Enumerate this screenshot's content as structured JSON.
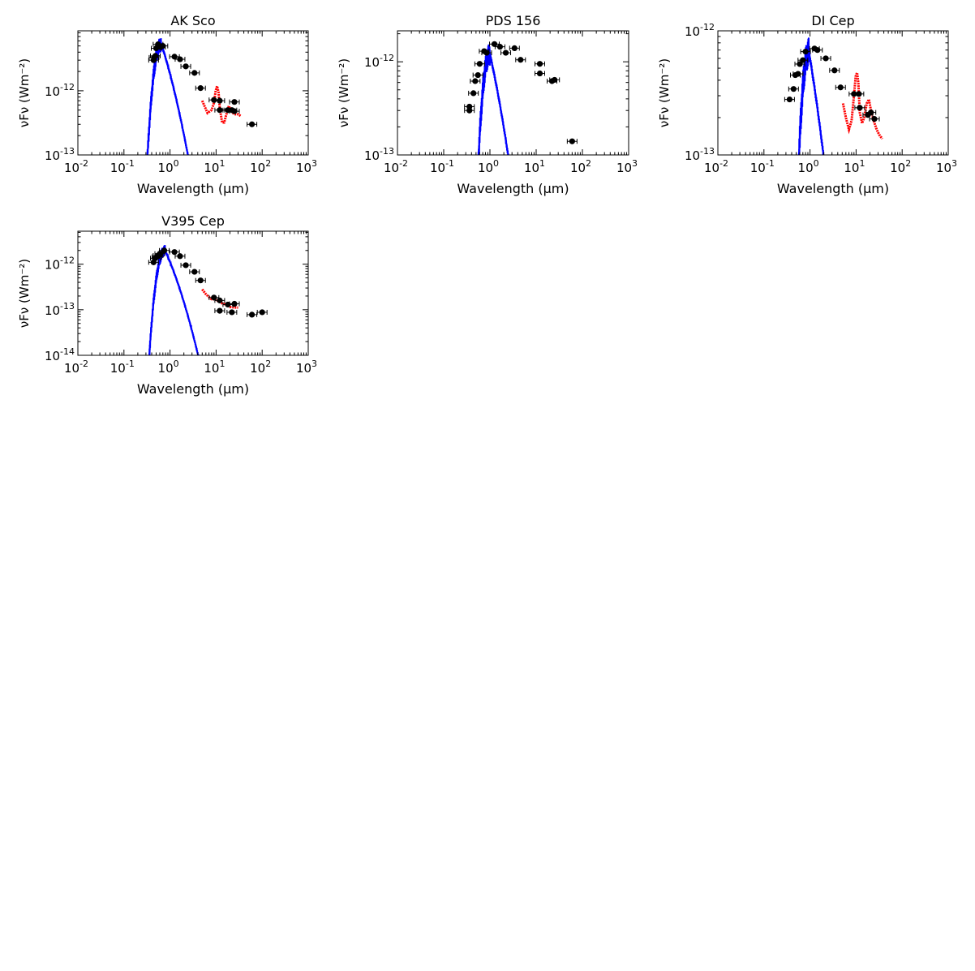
{
  "chart_data": [
    {
      "type": "scatter",
      "title": "AK Sco",
      "xlabel": "Wavelength (μm)",
      "ylabel": "νFν (Wm⁻²)",
      "xscale": "log",
      "yscale": "log",
      "xlim": [
        0.01,
        1000
      ],
      "ylim": [
        1e-13,
        8.6e-12
      ],
      "x_ticks": [
        "10^-2",
        "10^-1",
        "10^0",
        "10^1",
        "10^2",
        "10^3"
      ],
      "y_ticks": [
        "10^-13",
        "10^-12"
      ],
      "series": [
        {
          "kind": "photometry",
          "color": "#000000",
          "points": [
            [
              0.44,
              3e-12
            ],
            [
              0.45,
              3.3e-12
            ],
            [
              0.48,
              3.5e-12
            ],
            [
              0.5,
              4.6e-12
            ],
            [
              0.55,
              5.3e-12
            ],
            [
              0.62,
              4.8e-12
            ],
            [
              0.7,
              5e-12
            ],
            [
              1.25,
              3.4e-12
            ],
            [
              1.65,
              3.1e-12
            ],
            [
              2.2,
              2.4e-12
            ],
            [
              3.4,
              1.9e-12
            ],
            [
              4.6,
              1.1e-12
            ],
            [
              9.0,
              7.2e-13
            ],
            [
              12.0,
              7e-13
            ],
            [
              12.0,
              5e-13
            ],
            [
              18.0,
              5e-13
            ],
            [
              22.0,
              5e-13
            ],
            [
              25.0,
              6.7e-13
            ],
            [
              25.0,
              4.8e-13
            ],
            [
              60.0,
              3e-13
            ]
          ]
        },
        {
          "kind": "stellar_model",
          "color": "#0000ff",
          "peak_um": 0.65,
          "peak": 5.3e-12,
          "start_um": 0.25,
          "end_um": 5.0
        },
        {
          "kind": "ir_spectrum",
          "color": "#ff0000",
          "points": [
            [
              5.0,
              7e-13
            ],
            [
              6.5,
              4.5e-13
            ],
            [
              8.0,
              5e-13
            ],
            [
              9.0,
              6.5e-13
            ],
            [
              9.8,
              1e-12
            ],
            [
              10.5,
              1.18e-12
            ],
            [
              11.3,
              9.5e-13
            ],
            [
              12.0,
              5.5e-13
            ],
            [
              13.5,
              3.2e-13
            ],
            [
              15.0,
              3.2e-13
            ],
            [
              17.0,
              4.5e-13
            ],
            [
              19.0,
              5.8e-13
            ],
            [
              21.0,
              4.8e-13
            ],
            [
              25.0,
              4.3e-13
            ],
            [
              30.0,
              4.3e-13
            ],
            [
              35.0,
              4e-13
            ]
          ]
        }
      ]
    },
    {
      "type": "scatter",
      "title": "PDS 156",
      "xlabel": "Wavelength (μm)",
      "ylabel": "νFν (Wm⁻²)",
      "xscale": "log",
      "yscale": "log",
      "xlim": [
        0.01,
        1000
      ],
      "ylim": [
        1e-13,
        2.15e-12
      ],
      "x_ticks": [
        "10^-2",
        "10^-1",
        "10^0",
        "10^1",
        "10^2",
        "10^3"
      ],
      "y_ticks": [
        "10^-13",
        "10^-12"
      ],
      "series": [
        {
          "kind": "photometry",
          "color": "#000000",
          "points": [
            [
              0.36,
              3.3e-13
            ],
            [
              0.36,
              3e-13
            ],
            [
              0.44,
              4.6e-13
            ],
            [
              0.48,
              6.2e-13
            ],
            [
              0.55,
              7.2e-13
            ],
            [
              0.6,
              9.5e-13
            ],
            [
              0.75,
              1.3e-12
            ],
            [
              0.85,
              1.25e-12
            ],
            [
              1.25,
              1.55e-12
            ],
            [
              1.65,
              1.45e-12
            ],
            [
              2.2,
              1.25e-12
            ],
            [
              3.4,
              1.4e-12
            ],
            [
              4.6,
              1.05e-12
            ],
            [
              12.0,
              9.5e-13
            ],
            [
              12.0,
              7.5e-13
            ],
            [
              22.0,
              6.2e-13
            ],
            [
              25.0,
              6.4e-13
            ],
            [
              60.0,
              1.4e-13
            ]
          ]
        },
        {
          "kind": "stellar_model",
          "color": "#0000ff",
          "peak_um": 1.0,
          "peak": 1.2e-12,
          "start_um": 0.35,
          "end_um": 4.0
        }
      ]
    },
    {
      "type": "scatter",
      "title": "DI Cep",
      "xlabel": "Wavelength (μm)",
      "ylabel": "νFν (Wm⁻²)",
      "xscale": "log",
      "yscale": "log",
      "xlim": [
        0.01,
        1000
      ],
      "ylim": [
        1e-13,
        1e-12
      ],
      "x_ticks": [
        "10^-2",
        "10^-1",
        "10^0",
        "10^1",
        "10^2",
        "10^3"
      ],
      "y_ticks": [
        "10^-13",
        "10^-12"
      ],
      "series": [
        {
          "kind": "photometry",
          "color": "#000000",
          "points": [
            [
              0.36,
              2.8e-13
            ],
            [
              0.44,
              3.4e-13
            ],
            [
              0.48,
              4.4e-13
            ],
            [
              0.55,
              4.5e-13
            ],
            [
              0.6,
              5.4e-13
            ],
            [
              0.7,
              5.8e-13
            ],
            [
              0.8,
              6.8e-13
            ],
            [
              1.25,
              7.2e-13
            ],
            [
              1.45,
              7e-13
            ],
            [
              2.2,
              6e-13
            ],
            [
              3.4,
              4.8e-13
            ],
            [
              4.6,
              3.5e-13
            ],
            [
              9.0,
              3.1e-13
            ],
            [
              11.5,
              3.1e-13
            ],
            [
              12.0,
              2.4e-13
            ],
            [
              18.0,
              2.1e-13
            ],
            [
              21.0,
              2.2e-13
            ],
            [
              25.0,
              1.95e-13
            ]
          ]
        },
        {
          "kind": "stellar_model",
          "color": "#0000ff",
          "peak_um": 0.95,
          "peak": 6.7e-13,
          "start_um": 0.35,
          "end_um": 3.2
        },
        {
          "kind": "ir_spectrum",
          "color": "#ff0000",
          "points": [
            [
              5.2,
              2.6e-13
            ],
            [
              6.0,
              2e-13
            ],
            [
              7.0,
              1.6e-13
            ],
            [
              8.0,
              1.9e-13
            ],
            [
              9.0,
              3e-13
            ],
            [
              9.8,
              4.3e-13
            ],
            [
              10.5,
              4.6e-13
            ],
            [
              11.2,
              3.8e-13
            ],
            [
              12.0,
              2.2e-13
            ],
            [
              13.5,
              1.8e-13
            ],
            [
              15.0,
              2e-13
            ],
            [
              17.0,
              2.6e-13
            ],
            [
              19.0,
              2.8e-13
            ],
            [
              21.0,
              2.3e-13
            ],
            [
              24.0,
              1.9e-13
            ],
            [
              28.0,
              1.6e-13
            ],
            [
              32.0,
              1.45e-13
            ],
            [
              37.0,
              1.35e-13
            ]
          ]
        }
      ]
    },
    {
      "type": "scatter",
      "title": "V395 Cep",
      "xlabel": "Wavelength (μm)",
      "ylabel": "νFν (Wm⁻²)",
      "xscale": "log",
      "yscale": "log",
      "xlim": [
        0.01,
        1000
      ],
      "ylim": [
        1e-14,
        5.3e-12
      ],
      "x_ticks": [
        "10^-2",
        "10^-1",
        "10^0",
        "10^1",
        "10^2",
        "10^3"
      ],
      "y_ticks": [
        "10^-14",
        "10^-13",
        "10^-12"
      ],
      "series": [
        {
          "kind": "photometry",
          "color": "#000000",
          "points": [
            [
              0.44,
              1.1e-12
            ],
            [
              0.48,
              1.35e-12
            ],
            [
              0.52,
              1.45e-12
            ],
            [
              0.55,
              1.55e-12
            ],
            [
              0.6,
              1.7e-12
            ],
            [
              0.75,
              2e-12
            ],
            [
              1.25,
              1.85e-12
            ],
            [
              1.65,
              1.5e-12
            ],
            [
              2.2,
              9.5e-13
            ],
            [
              3.4,
              6.8e-13
            ],
            [
              4.6,
              4.4e-13
            ],
            [
              9.0,
              1.85e-13
            ],
            [
              12.0,
              1.6e-13
            ],
            [
              12.0,
              9.5e-14
            ],
            [
              18.0,
              1.3e-13
            ],
            [
              22.0,
              8.8e-14
            ],
            [
              25.0,
              1.35e-13
            ],
            [
              60.0,
              7.8e-14
            ],
            [
              100.0,
              8.8e-14
            ]
          ]
        },
        {
          "kind": "stellar_model",
          "color": "#0000ff",
          "peak_um": 0.78,
          "peak": 2e-12,
          "start_um": 0.25,
          "end_um": 9.0
        },
        {
          "kind": "ir_spectrum",
          "color": "#ff0000",
          "points": [
            [
              5.0,
              2.8e-13
            ],
            [
              6.0,
              2.2e-13
            ],
            [
              7.0,
              1.9e-13
            ],
            [
              8.0,
              1.7e-13
            ],
            [
              9.5,
              1.7e-13
            ],
            [
              10.5,
              1.6e-13
            ],
            [
              12.0,
              1.5e-13
            ],
            [
              14.0,
              1.35e-13
            ],
            [
              17.0,
              1.3e-13
            ],
            [
              20.0,
              1.15e-13
            ],
            [
              25.0,
              1.12e-13
            ],
            [
              30.0,
              1.12e-13
            ]
          ]
        }
      ]
    }
  ]
}
